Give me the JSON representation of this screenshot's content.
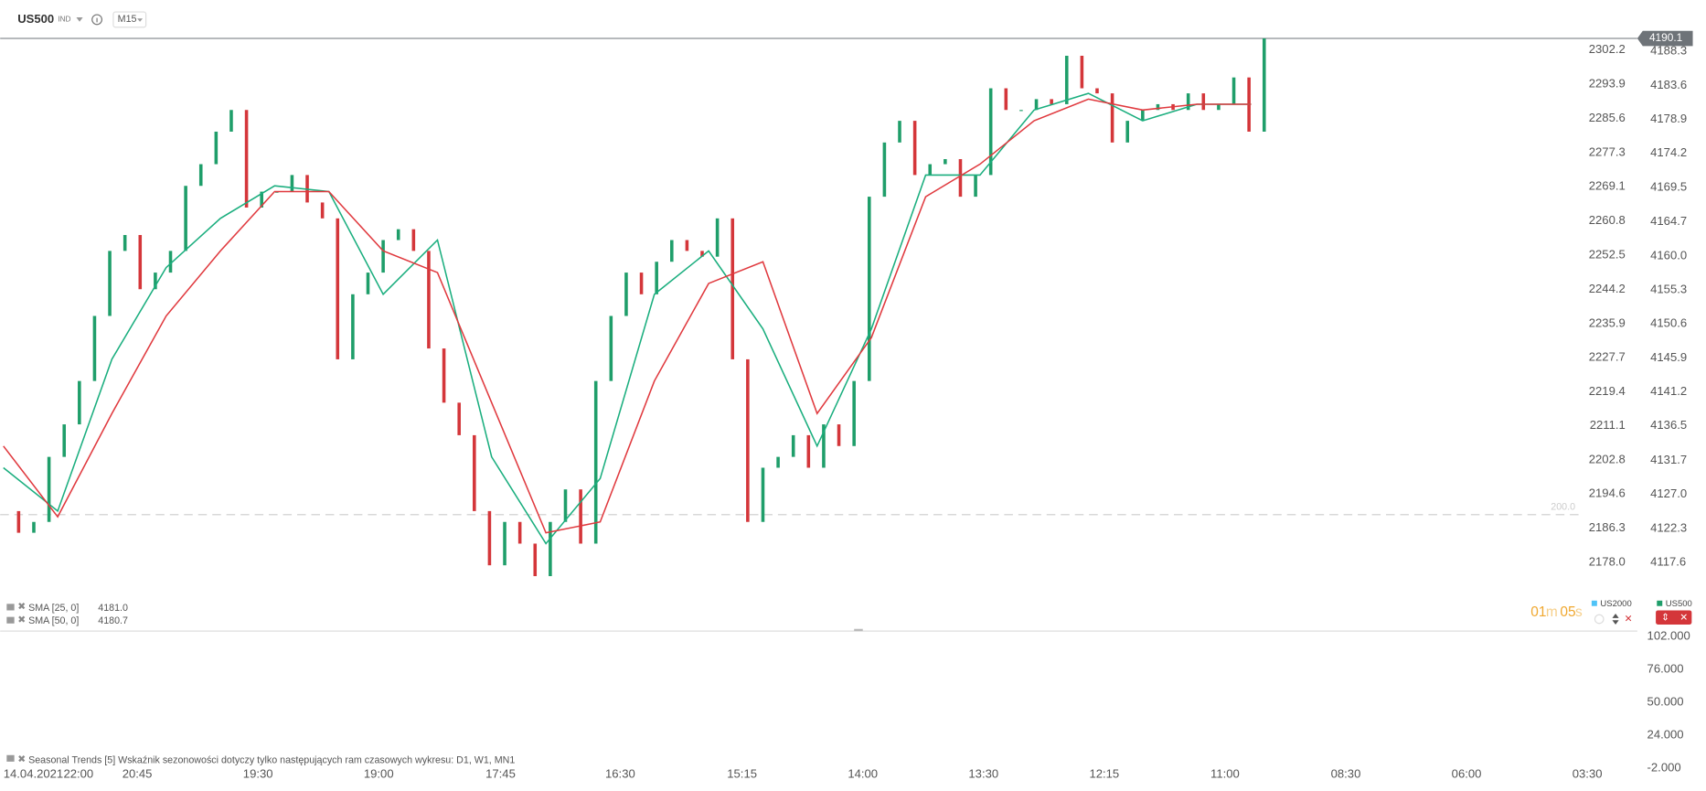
{
  "header": {
    "symbol": "US500",
    "market": "IND",
    "timeframe": "M15"
  },
  "chart_data": {
    "type": "candlestick",
    "price": {
      "name": "US500",
      "up_color": "#1f9e6a",
      "down_color": "#d4363a",
      "values": [
        4124.7,
        4121.7,
        4123.2,
        4132.2,
        4136.7,
        4142.7,
        4151.7,
        4160.7,
        4162.9,
        4155.4,
        4157.7,
        4160.7,
        4169.7,
        4172.7,
        4177.2,
        4180.2,
        4166.7,
        4168.9,
        4168.9,
        4171.2,
        4167.4,
        4165.2,
        4145.7,
        4154.7,
        4157.7,
        4162.2,
        4163.7,
        4160.7,
        4147.2,
        4139.7,
        4135.2,
        4124.7,
        4117.2,
        4123.2,
        4120.2,
        4115.7,
        4123.2,
        4127.7,
        4120.2,
        4142.7,
        4151.7,
        4157.7,
        4154.7,
        4159.2,
        4162.2,
        4160.7,
        4159.9,
        4165.2,
        4145.7,
        4123.2,
        4130.7,
        4132.2,
        4135.2,
        4130.7,
        4136.7,
        4133.7,
        4142.7,
        4168.2,
        4175.7,
        4178.7,
        4171.2,
        4172.7,
        4173.4,
        4168.2,
        4171.2,
        4183.2,
        4180.2,
        4180.2,
        4181.7,
        4181.0,
        4187.7,
        4183.2,
        4182.5,
        4175.7,
        4178.7,
        4180.2,
        4181.0,
        4180.2,
        4182.5,
        4180.2,
        4181.0,
        4184.7,
        4177.2,
        4190.1
      ]
    },
    "indicators": [
      {
        "name": "SMA [25, 0]",
        "value_label": "4181.0",
        "color": "#1aae7e",
        "values": [
          4130.7,
          4124.7,
          4145.7,
          4158.4,
          4165.2,
          4169.7,
          4168.9,
          4154.7,
          4162.2,
          4132.2,
          4120.2,
          4129.2,
          4154.7,
          4160.7,
          4149.9,
          4133.7,
          4149.9,
          4171.2,
          4171.2,
          4180.2,
          4182.5,
          4178.7,
          4181.0,
          4181.0
        ]
      },
      {
        "name": "SMA [50, 0]",
        "value_label": "4180.7",
        "color": "#e0393e",
        "values": [
          4133.7,
          4123.9,
          4138.2,
          4151.7,
          4160.7,
          4168.9,
          4168.9,
          4160.7,
          4157.7,
          4139.7,
          4121.7,
          4123.2,
          4142.7,
          4156.2,
          4159.2,
          4138.2,
          4148.7,
          4168.2,
          4172.7,
          4178.7,
          4181.7,
          4180.2,
          4181.0,
          4181.0
        ]
      }
    ],
    "last_price": 4190.1,
    "ylim": [
      4108.1,
      4190.9
    ],
    "yticks": [
      4188.3,
      4183.6,
      4178.9,
      4174.2,
      4169.5,
      4164.7,
      {
        "value": 4160,
        "label": "4160.0"
      },
      4155.3,
      4150.6,
      4145.9,
      4141.2,
      4136.5,
      4131.7,
      {
        "value": 4127,
        "label": "4127.0"
      },
      4122.3,
      4117.6
    ],
    "y2lim": [
      2161.4,
      2306.4
    ],
    "y2ticks": [
      2302.2,
      2293.9,
      2285.6,
      2277.3,
      2269.1,
      2260.8,
      2252.5,
      2244.2,
      2235.9,
      2227.7,
      2219.4,
      2211.1,
      2202.8,
      2194.6,
      2186.3,
      {
        "value": 2178,
        "label": "2178.0"
      }
    ],
    "x_labels": [
      "14.04.2021",
      "22:00",
      "20:45",
      "19:30",
      "19:00",
      "17:45",
      "16:30",
      "15:15",
      "14:00",
      "13:30",
      "12:15",
      "11:00",
      "08:30",
      "06:00",
      "03:30"
    ],
    "level_label": "200.0",
    "symbols": [
      {
        "name": "US2000",
        "color": "#4fc3f7"
      },
      {
        "name": "US500",
        "color": "#1f9e6a"
      }
    ],
    "countdown": {
      "minutes": "01",
      "minutes_unit": "m",
      "seconds": "05",
      "seconds_unit": "s"
    }
  },
  "lower_pane": {
    "title": "Seasonal Trends [5] Wskaźnik sezonowości dotyczy tylko następujących ram czasowych wykresu: D1, W1, MN1",
    "ylim": [
      -2,
      102
    ],
    "yticks": [
      {
        "value": 102,
        "label": "102.000"
      },
      {
        "value": 76,
        "label": "76.000"
      },
      {
        "value": 50,
        "label": "50.000"
      },
      {
        "value": 24,
        "label": "24.000"
      },
      {
        "value": -2,
        "label": "-2.000"
      }
    ]
  }
}
